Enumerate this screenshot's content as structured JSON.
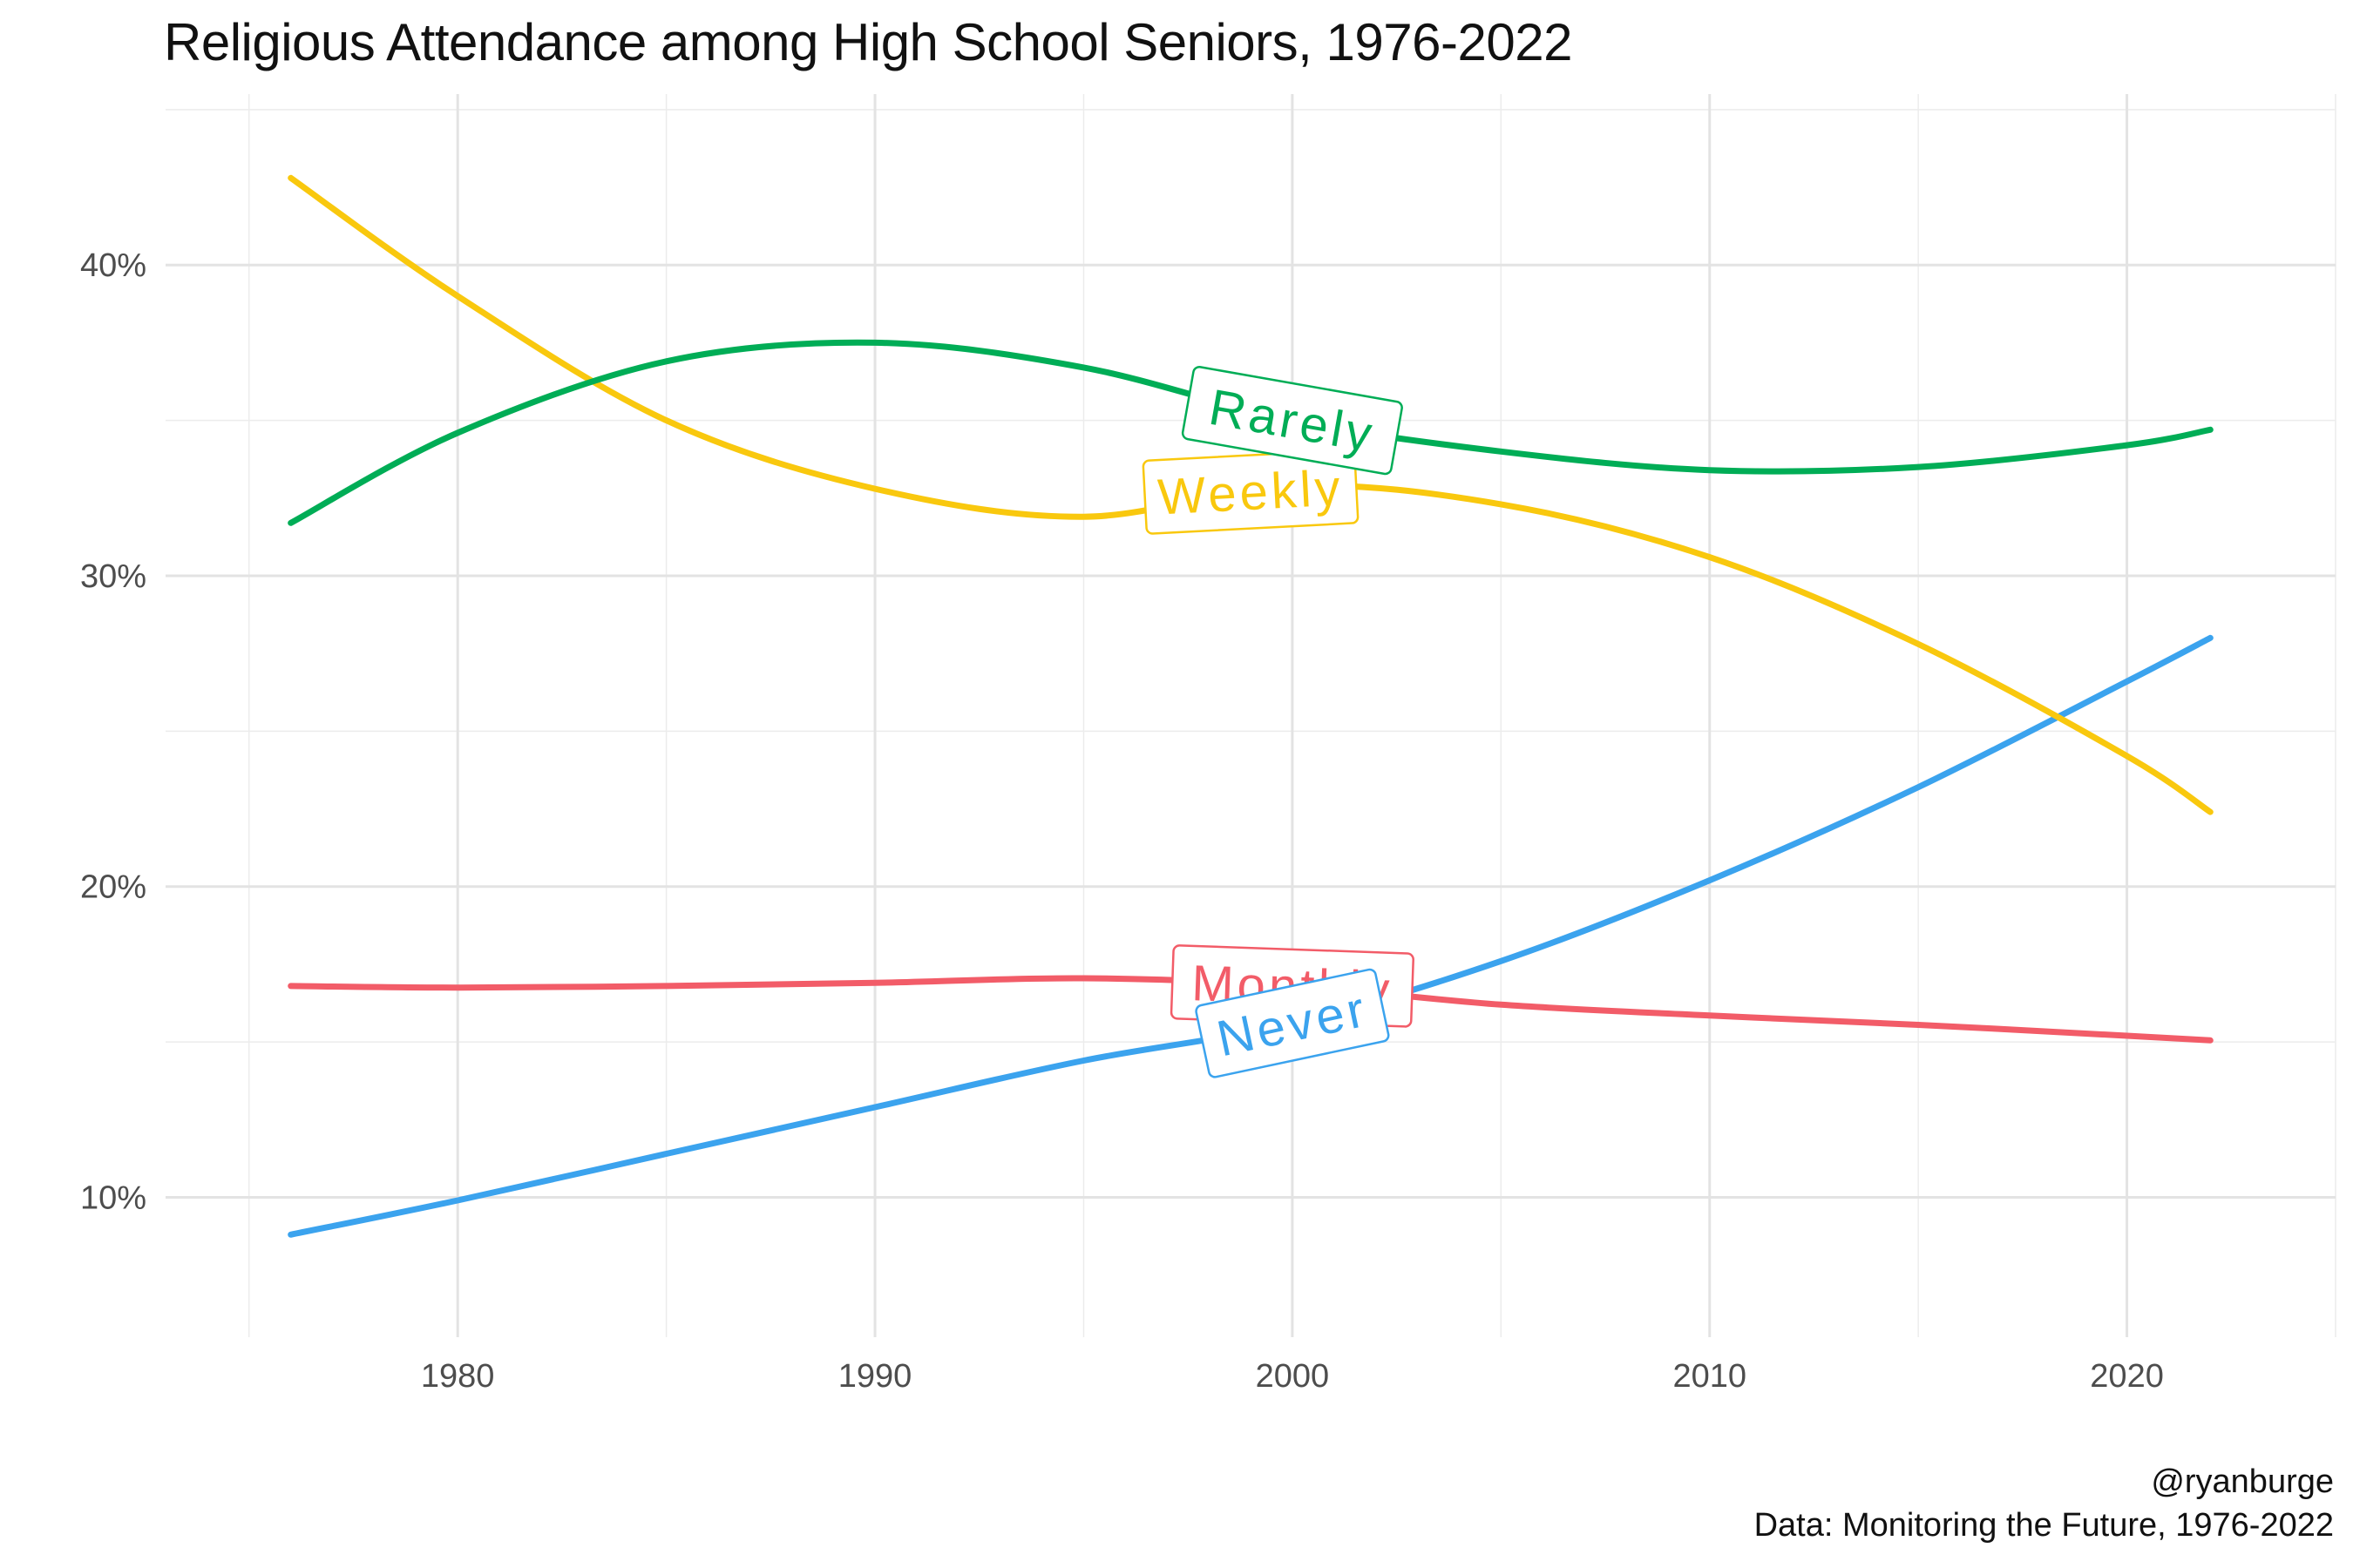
{
  "title": "Religious Attendance among High School Seniors, 1976-2022",
  "caption": {
    "author": "@ryanburge",
    "source": "Data: Monitoring the Future, 1976-2022"
  },
  "chart_data": {
    "type": "line",
    "title": "Religious Attendance among High School Seniors, 1976-2022",
    "xlabel": "",
    "ylabel": "",
    "xlim": [
      1973,
      2025
    ],
    "ylim": [
      5.5,
      45.5
    ],
    "x_ticks": [
      1980,
      1990,
      2000,
      2010,
      2020
    ],
    "y_ticks": [
      10,
      20,
      30,
      40
    ],
    "y_tick_labels": [
      "10%",
      "20%",
      "30%",
      "40%"
    ],
    "grid": true,
    "legend": "inline labels",
    "x": [
      1976,
      1980,
      1985,
      1990,
      1995,
      2000,
      2005,
      2010,
      2015,
      2020,
      2022
    ],
    "series": [
      {
        "name": "Rarely",
        "color": "#00AD56",
        "values": [
          31.7,
          34.6,
          36.9,
          37.5,
          36.7,
          35.0,
          34.0,
          33.4,
          33.5,
          34.2,
          34.7
        ],
        "label_at": 2000,
        "label_rotation": 10
      },
      {
        "name": "Weekly",
        "color": "#F9C80E",
        "values": [
          42.8,
          39.0,
          35.0,
          32.8,
          31.9,
          32.9,
          32.3,
          30.6,
          27.8,
          24.2,
          22.4
        ],
        "label_at": 1999,
        "label_rotation": -3
      },
      {
        "name": "Monthly",
        "color": "#F25C68",
        "values": [
          16.8,
          16.75,
          16.8,
          16.9,
          17.05,
          16.8,
          16.2,
          15.85,
          15.55,
          15.2,
          15.05
        ],
        "label_at": 2000,
        "label_rotation": 2
      },
      {
        "name": "Never",
        "color": "#3BA3EE",
        "values": [
          8.8,
          9.9,
          11.4,
          12.9,
          14.4,
          15.6,
          17.6,
          20.2,
          23.2,
          26.6,
          28.0
        ],
        "label_at": 2000,
        "label_rotation": -12
      }
    ]
  }
}
